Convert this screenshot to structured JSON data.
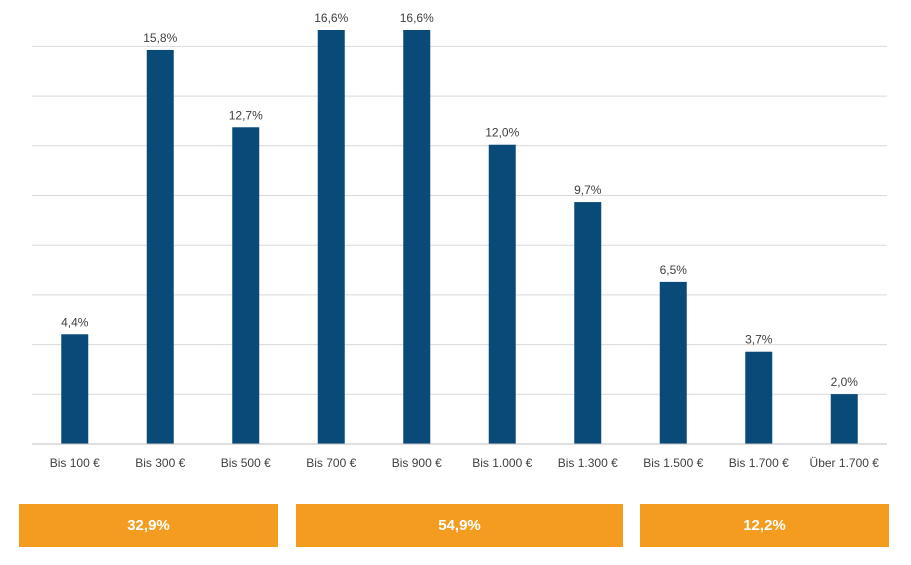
{
  "chart_data": {
    "type": "bar",
    "categories": [
      "Bis 100 €",
      "Bis 300 €",
      "Bis 500 €",
      "Bis 700 €",
      "Bis 900 €",
      "Bis 1.000 €",
      "Bis 1.300 €",
      "Bis 1.500 €",
      "Bis 1.700 €",
      "Über 1.700 €"
    ],
    "values": [
      4.4,
      15.8,
      12.7,
      16.6,
      16.6,
      12.0,
      9.7,
      6.5,
      3.7,
      2.0
    ],
    "value_labels": [
      "4,4%",
      "15,8%",
      "12,7%",
      "16,6%",
      "16,6%",
      "12,0%",
      "9,7%",
      "6,5%",
      "3,7%",
      "2,0%"
    ],
    "ylim": [
      0,
      16.6
    ],
    "grid": true,
    "bar_color": "#0a4a78",
    "grid_color": "#d9d9d9",
    "axis_color": "#bfbfbf"
  },
  "summary_boxes": [
    {
      "label": "32,9%",
      "from_category": 0,
      "to_category": 2
    },
    {
      "label": "54,9%",
      "from_category": 3,
      "to_category": 6
    },
    {
      "label": "12,2%",
      "from_category": 7,
      "to_category": 9
    }
  ],
  "summary_color": "#f39c1f"
}
